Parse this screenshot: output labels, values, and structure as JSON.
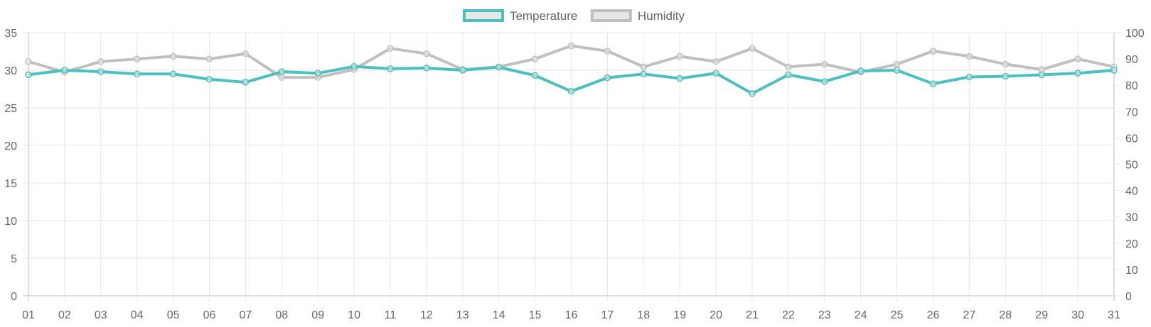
{
  "chart_data": {
    "type": "line",
    "title": "",
    "xlabel": "",
    "ylabel_left": "",
    "ylabel_right": "",
    "legend_position": "top-center",
    "grid": true,
    "categories": [
      "01",
      "02",
      "03",
      "04",
      "05",
      "06",
      "07",
      "08",
      "09",
      "10",
      "11",
      "12",
      "13",
      "14",
      "15",
      "16",
      "17",
      "18",
      "19",
      "20",
      "21",
      "22",
      "23",
      "24",
      "25",
      "26",
      "27",
      "28",
      "29",
      "30",
      "31"
    ],
    "y_left": {
      "min": 0,
      "max": 35,
      "step": 5,
      "ticks": [
        "0",
        "5",
        "10",
        "15",
        "20",
        "25",
        "30",
        "35"
      ]
    },
    "y_right": {
      "min": 0,
      "max": 100,
      "step": 10,
      "ticks": [
        "0",
        "10",
        "20",
        "30",
        "40",
        "50",
        "60",
        "70",
        "80",
        "90",
        "100"
      ]
    },
    "series": [
      {
        "name": "Temperature",
        "axis": "left",
        "color": "#4bc0c0",
        "legend_fill": "#e6e6e6",
        "values": [
          29.4,
          30.0,
          29.8,
          29.5,
          29.5,
          28.8,
          28.4,
          29.8,
          29.6,
          30.5,
          30.2,
          30.3,
          30.0,
          30.4,
          29.3,
          27.2,
          29.0,
          29.5,
          28.9,
          29.6,
          26.9,
          29.4,
          28.5,
          29.9,
          30.0,
          28.2,
          29.1,
          29.2,
          29.4,
          29.6,
          30.0
        ]
      },
      {
        "name": "Humidity",
        "axis": "right",
        "color": "#c0c0c0",
        "legend_fill": "#e6e6e6",
        "values": [
          89,
          85,
          89,
          90,
          91,
          90,
          92,
          83,
          83,
          86,
          94,
          92,
          86,
          87,
          90,
          95,
          93,
          87,
          91,
          89,
          94,
          87,
          88,
          85,
          88,
          93,
          91,
          88,
          86,
          90,
          87
        ]
      }
    ]
  }
}
